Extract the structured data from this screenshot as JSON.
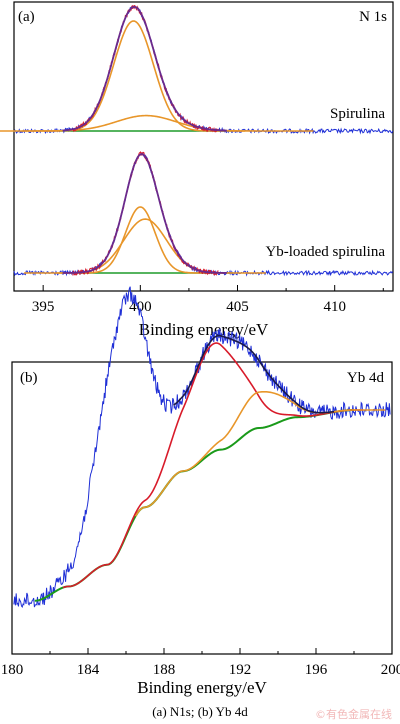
{
  "caption": "(a) N1s; (b) Yb 4d",
  "watermark": "©有色金属在线",
  "colors": {
    "raw": "#1f2fd6",
    "fit": "#d81b2a",
    "component": "#e8962a",
    "background": "#1f9b2a",
    "envelope": "#6b2a8c",
    "bg_line_b": "#1a9a1a"
  },
  "chart_data": [
    {
      "type": "line",
      "panel_label": "(a)",
      "corner_label": "N 1s",
      "xlabel": "Binding energy/eV",
      "ylabel": "",
      "xlim": [
        393.5,
        413
      ],
      "xticks": [
        395,
        400,
        405,
        410
      ],
      "series_labels": [
        "Spirulina",
        "Yb-loaded spirulina"
      ],
      "subpanels": [
        {
          "label": "Spirulina",
          "baseline_offset": 0.57,
          "components": [
            {
              "center": 399.65,
              "height": 1.0,
              "fwhm": 2.4
            },
            {
              "center": 400.3,
              "height": 0.14,
              "fwhm": 3.6
            }
          ]
        },
        {
          "label": "Yb-loaded spirulina",
          "baseline_offset": 0.0,
          "components": [
            {
              "center": 400.0,
              "height": 0.6,
              "fwhm": 1.8
            },
            {
              "center": 400.25,
              "height": 0.49,
              "fwhm": 2.6
            }
          ]
        }
      ]
    },
    {
      "type": "line",
      "panel_label": "(b)",
      "corner_label": "Yb 4d",
      "xlabel": "Binding energy/eV",
      "ylabel": "",
      "xlim": [
        180,
        200
      ],
      "xticks": [
        180,
        184,
        188,
        192,
        196,
        200
      ],
      "components": [
        {
          "center": 185.9,
          "height": 0.66,
          "fwhm": 3.0
        },
        {
          "center": 190.6,
          "height": 0.3,
          "fwhm": 3.6
        },
        {
          "center": 193.1,
          "height": 0.1,
          "fwhm": 3.0
        }
      ],
      "background": {
        "points": [
          [
            181.2,
            0.02
          ],
          [
            183,
            0.06
          ],
          [
            185,
            0.12
          ],
          [
            187,
            0.28
          ],
          [
            189,
            0.38
          ],
          [
            191,
            0.44
          ],
          [
            193,
            0.5
          ],
          [
            195,
            0.53
          ],
          [
            198,
            0.55
          ]
        ]
      }
    }
  ]
}
